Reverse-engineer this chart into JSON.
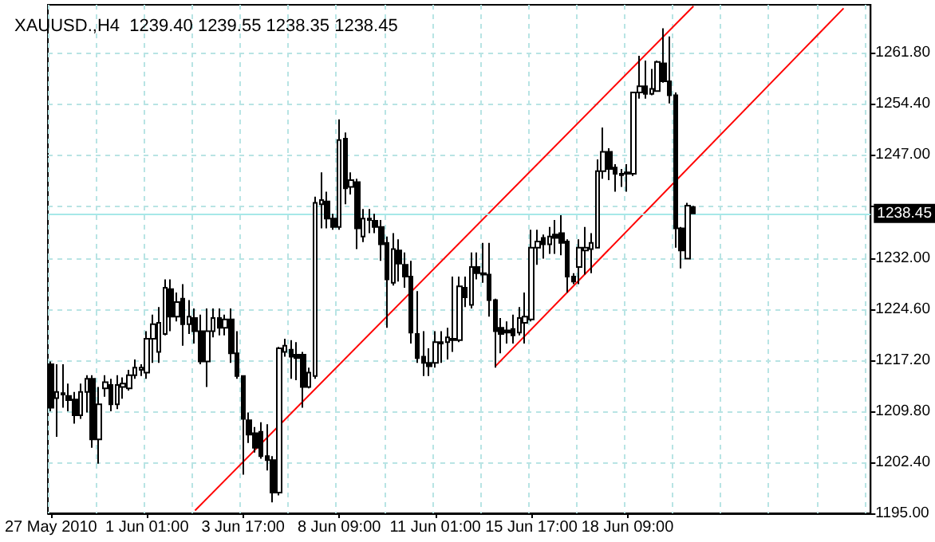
{
  "chart_data": {
    "type": "candlestick",
    "title": "XAUUSD.,H4  1239.40 1239.55 1238.35 1238.45",
    "categories": [
      "27 May 2010",
      null,
      null,
      null,
      null,
      null,
      null,
      null,
      null,
      null,
      null,
      null,
      null,
      null,
      null,
      null,
      "1 Jun 01:00",
      null,
      null,
      null,
      null,
      null,
      null,
      null,
      null,
      null,
      null,
      null,
      null,
      null,
      null,
      null,
      "3 Jun 17:00",
      null,
      null,
      null,
      null,
      null,
      null,
      null,
      null,
      null,
      null,
      null,
      null,
      null,
      null,
      null,
      "8 Jun 09:00",
      null,
      null,
      null,
      null,
      null,
      null,
      null,
      null,
      null,
      null,
      null,
      null,
      null,
      null,
      null,
      "11 Jun 01:00",
      null,
      null,
      null,
      null,
      null,
      null,
      null,
      null,
      null,
      null,
      null,
      null,
      null,
      null,
      null,
      "15 Jun 17:00",
      null,
      null,
      null,
      null,
      null,
      null,
      null,
      null,
      null,
      null,
      null,
      null,
      null,
      null,
      null,
      "18 Jun 09:00",
      null,
      null,
      null,
      null,
      null,
      null,
      null,
      null,
      null,
      null,
      null,
      null,
      null,
      null,
      null,
      null,
      null,
      null,
      null,
      null,
      null,
      null,
      null,
      null,
      null,
      null,
      null,
      null,
      null,
      null,
      null,
      null,
      null,
      null,
      null,
      null,
      null,
      null,
      null,
      null
    ],
    "ohlc": [
      [
        1216.6,
        1217.0,
        1209.8,
        1210.3
      ],
      [
        1211.7,
        1216.6,
        1206.1,
        1212.6
      ],
      [
        1212.2,
        1216.6,
        1210.3,
        1212.4
      ],
      [
        1212.0,
        1213.8,
        1209.8,
        1211.4
      ],
      [
        1211.5,
        1212.6,
        1208.0,
        1209.2
      ],
      [
        1209.2,
        1213.8,
        1208.7,
        1212.6
      ],
      [
        1212.6,
        1215.0,
        1209.6,
        1214.5
      ],
      [
        1214.5,
        1215.0,
        1204.5,
        1205.7
      ],
      [
        1205.7,
        1213.3,
        1202.2,
        1210.8
      ],
      [
        1213.1,
        1215.0,
        1211.9,
        1214.0
      ],
      [
        1213.6,
        1214.5,
        1209.8,
        1210.8
      ],
      [
        1210.8,
        1215.0,
        1210.1,
        1213.6
      ],
      [
        1213.3,
        1214.7,
        1211.6,
        1213.8
      ],
      [
        1213.1,
        1215.8,
        1212.8,
        1215.0
      ],
      [
        1215.0,
        1217.3,
        1214.5,
        1216.1
      ],
      [
        1215.8,
        1216.6,
        1214.9,
        1216.1
      ],
      [
        1215.4,
        1221.4,
        1214.5,
        1220.3
      ],
      [
        1220.3,
        1223.8,
        1216.8,
        1222.4
      ],
      [
        1218.4,
        1224.9,
        1216.8,
        1222.6
      ],
      [
        1221.0,
        1228.9,
        1220.8,
        1227.7
      ],
      [
        1227.5,
        1228.9,
        1221.4,
        1223.5
      ],
      [
        1223.5,
        1227.0,
        1222.8,
        1225.6
      ],
      [
        1226.1,
        1228.2,
        1219.3,
        1222.4
      ],
      [
        1222.4,
        1225.9,
        1221.0,
        1223.5
      ],
      [
        1223.3,
        1224.7,
        1219.6,
        1221.4
      ],
      [
        1221.4,
        1223.8,
        1216.6,
        1217.0
      ],
      [
        1217.0,
        1224.7,
        1213.3,
        1221.4
      ],
      [
        1221.4,
        1224.7,
        1220.5,
        1223.3
      ],
      [
        1223.3,
        1224.7,
        1220.8,
        1221.9
      ],
      [
        1221.9,
        1223.8,
        1220.8,
        1223.1
      ],
      [
        1223.1,
        1224.7,
        1216.8,
        1218.2
      ],
      [
        1218.2,
        1221.4,
        1214.5,
        1214.9
      ],
      [
        1214.9,
        1214.9,
        1200.6,
        1208.7
      ],
      [
        1208.5,
        1209.6,
        1205.2,
        1206.4
      ],
      [
        1206.6,
        1207.5,
        1203.8,
        1204.5
      ],
      [
        1206.8,
        1208.2,
        1202.9,
        1203.3
      ],
      [
        1203.3,
        1207.9,
        1201.2,
        1202.7
      ],
      [
        1202.7,
        1203.3,
        1196.6,
        1198.0
      ],
      [
        1198.0,
        1219.1,
        1197.6,
        1218.9
      ],
      [
        1218.4,
        1220.3,
        1217.7,
        1219.3
      ],
      [
        1218.7,
        1220.1,
        1214.5,
        1217.7
      ],
      [
        1218.0,
        1219.8,
        1214.3,
        1217.5
      ],
      [
        1218.0,
        1218.4,
        1210.3,
        1213.3
      ],
      [
        1213.3,
        1216.1,
        1213.1,
        1215.4
      ],
      [
        1214.9,
        1240.9,
        1214.5,
        1240.0
      ],
      [
        1239.8,
        1244.4,
        1236.3,
        1240.4
      ],
      [
        1240.2,
        1241.6,
        1236.3,
        1237.7
      ],
      [
        1237.7,
        1238.4,
        1236.1,
        1236.5
      ],
      [
        1236.5,
        1252.1,
        1236.1,
        1249.1
      ],
      [
        1249.3,
        1250.2,
        1239.8,
        1242.1
      ],
      [
        1242.3,
        1244.4,
        1241.2,
        1243.3
      ],
      [
        1243.0,
        1243.5,
        1233.3,
        1236.3
      ],
      [
        1235.1,
        1239.1,
        1234.3,
        1237.7
      ],
      [
        1237.5,
        1239.1,
        1235.6,
        1237.7
      ],
      [
        1237.4,
        1238.4,
        1235.6,
        1236.5
      ],
      [
        1236.5,
        1237.5,
        1231.6,
        1234.0
      ],
      [
        1234.2,
        1235.1,
        1221.9,
        1228.9
      ],
      [
        1228.4,
        1235.6,
        1228.0,
        1233.3
      ],
      [
        1233.1,
        1234.7,
        1228.6,
        1231.2
      ],
      [
        1231.0,
        1232.8,
        1227.7,
        1229.3
      ],
      [
        1229.3,
        1231.6,
        1219.6,
        1221.2
      ],
      [
        1221.0,
        1227.2,
        1216.8,
        1217.5
      ],
      [
        1217.7,
        1221.4,
        1214.9,
        1216.8
      ],
      [
        1216.8,
        1218.9,
        1214.9,
        1216.3
      ],
      [
        1216.8,
        1221.4,
        1216.1,
        1219.8
      ],
      [
        1219.6,
        1221.4,
        1216.8,
        1219.8
      ],
      [
        1219.8,
        1221.9,
        1217.3,
        1220.5
      ],
      [
        1220.3,
        1229.3,
        1218.4,
        1220.1
      ],
      [
        1220.1,
        1229.3,
        1219.8,
        1227.9
      ],
      [
        1227.7,
        1229.3,
        1224.9,
        1226.3
      ],
      [
        1225.2,
        1232.8,
        1224.7,
        1230.7
      ],
      [
        1230.7,
        1232.8,
        1228.9,
        1229.8
      ],
      [
        1229.8,
        1234.2,
        1228.4,
        1229.6
      ],
      [
        1229.6,
        1234.2,
        1223.5,
        1225.9
      ],
      [
        1225.9,
        1226.1,
        1216.1,
        1221.4
      ],
      [
        1221.9,
        1223.3,
        1218.2,
        1221.0
      ],
      [
        1221.5,
        1222.8,
        1219.6,
        1221.2
      ],
      [
        1221.7,
        1223.8,
        1219.6,
        1220.8
      ],
      [
        1221.2,
        1224.9,
        1220.8,
        1223.3
      ],
      [
        1222.6,
        1227.0,
        1219.6,
        1223.5
      ],
      [
        1223.1,
        1236.1,
        1222.8,
        1233.5
      ],
      [
        1233.5,
        1236.1,
        1231.0,
        1234.4
      ],
      [
        1234.9,
        1235.4,
        1231.9,
        1234.0
      ],
      [
        1234.0,
        1236.5,
        1232.6,
        1235.1
      ],
      [
        1235.4,
        1237.5,
        1232.6,
        1234.9
      ],
      [
        1235.6,
        1238.2,
        1232.4,
        1234.2
      ],
      [
        1234.4,
        1234.7,
        1227.0,
        1229.3
      ],
      [
        1229.3,
        1229.8,
        1228.2,
        1228.6
      ],
      [
        1230.7,
        1234.7,
        1228.2,
        1233.5
      ],
      [
        1233.1,
        1236.5,
        1229.6,
        1233.5
      ],
      [
        1233.3,
        1235.6,
        1229.8,
        1234.2
      ],
      [
        1233.5,
        1246.3,
        1233.5,
        1244.6
      ],
      [
        1244.6,
        1250.9,
        1243.5,
        1247.4
      ],
      [
        1247.4,
        1247.9,
        1243.3,
        1244.9
      ],
      [
        1245.1,
        1245.6,
        1241.6,
        1244.2
      ],
      [
        1244.2,
        1244.9,
        1242.3,
        1244.0
      ],
      [
        1244.2,
        1245.6,
        1241.6,
        1244.4
      ],
      [
        1244.2,
        1256.0,
        1243.9,
        1256.0
      ],
      [
        1256.0,
        1261.3,
        1255.1,
        1256.9
      ],
      [
        1256.9,
        1260.6,
        1255.1,
        1255.8
      ],
      [
        1255.8,
        1259.4,
        1255.6,
        1256.5
      ],
      [
        1256.2,
        1260.6,
        1256.2,
        1260.4
      ],
      [
        1260.2,
        1265.3,
        1257.4,
        1257.6
      ],
      [
        1257.6,
        1264.1,
        1254.4,
        1255.6
      ],
      [
        1255.6,
        1256.0,
        1233.5,
        1236.3
      ],
      [
        1236.3,
        1236.5,
        1230.5,
        1233.1
      ],
      [
        1231.9,
        1240.0,
        1231.9,
        1239.6
      ],
      [
        1239.4,
        1239.55,
        1238.35,
        1238.45
      ],
      null,
      null,
      null,
      null,
      null,
      null,
      null,
      null,
      null,
      null,
      null,
      null,
      null,
      null,
      null,
      null,
      null,
      null,
      null,
      null,
      null,
      null,
      null,
      null,
      null,
      null,
      null,
      null,
      null
    ],
    "series": [
      {
        "type": "line",
        "color": "#ff0000",
        "values": [
          null,
          null,
          null,
          null,
          null,
          null,
          null,
          null,
          null,
          null,
          null,
          null,
          null,
          null,
          null,
          null,
          null,
          null,
          null,
          null,
          null,
          null,
          null,
          null,
          1195.4,
          null,
          null,
          null,
          null,
          null,
          null,
          null,
          null,
          null,
          null,
          null,
          null,
          null,
          null,
          null,
          null,
          null,
          null,
          null,
          null,
          null,
          null,
          null,
          null,
          null,
          null,
          null,
          null,
          null,
          null,
          null,
          null,
          null,
          null,
          null,
          null,
          null,
          null,
          null,
          null,
          null,
          null,
          null,
          null,
          null,
          null,
          null,
          null,
          null,
          null,
          null,
          null,
          null,
          null,
          null,
          null,
          null,
          null,
          null,
          null,
          null,
          null,
          null,
          null,
          null,
          null,
          null,
          null,
          null,
          null,
          null,
          null,
          null,
          null,
          null,
          null,
          null,
          null,
          null,
          null,
          null,
          null,
          1268.5,
          null,
          null,
          null,
          null,
          null,
          null,
          null,
          null,
          null,
          null,
          null,
          null,
          null,
          null,
          null,
          null,
          null,
          null,
          null,
          null,
          null,
          null,
          null,
          null,
          null,
          null,
          null,
          null,
          null
        ]
      },
      {
        "type": "line",
        "color": "#ff0000",
        "values": [
          null,
          null,
          null,
          null,
          null,
          null,
          null,
          null,
          null,
          null,
          null,
          null,
          null,
          null,
          null,
          null,
          null,
          null,
          null,
          null,
          null,
          null,
          null,
          null,
          null,
          null,
          null,
          null,
          null,
          null,
          null,
          null,
          null,
          null,
          null,
          null,
          null,
          null,
          null,
          null,
          null,
          null,
          null,
          null,
          null,
          null,
          null,
          null,
          null,
          null,
          null,
          null,
          null,
          null,
          null,
          null,
          null,
          null,
          null,
          null,
          null,
          null,
          null,
          null,
          null,
          null,
          null,
          null,
          null,
          null,
          null,
          null,
          null,
          null,
          1216.3,
          null,
          null,
          null,
          null,
          null,
          null,
          null,
          null,
          null,
          null,
          null,
          null,
          null,
          null,
          null,
          null,
          null,
          null,
          null,
          null,
          null,
          null,
          null,
          null,
          null,
          null,
          null,
          null,
          null,
          null,
          null,
          null,
          null,
          null,
          null,
          null,
          null,
          null,
          null,
          null,
          null,
          null,
          null,
          null,
          null,
          null,
          null,
          null,
          null,
          null,
          null,
          null,
          null,
          null,
          null,
          null,
          null,
          1268.2,
          null,
          null,
          null,
          null
        ]
      }
    ],
    "ylim": [
      1195,
      1268.7
    ],
    "yticks": [
      {
        "value": 1195,
        "label": "1195.00"
      },
      {
        "value": 1202.4,
        "label": "1202.40"
      },
      {
        "value": 1209.8,
        "label": "1209.80"
      },
      {
        "value": 1217.2,
        "label": "1217.20"
      },
      {
        "value": 1224.6,
        "label": "1224.60"
      },
      {
        "value": 1232,
        "label": "1232.00"
      },
      {
        "value": 1239.6,
        "label": null
      },
      {
        "value": 1247,
        "label": "1247.00"
      },
      {
        "value": 1254.4,
        "label": "1254.40"
      },
      {
        "value": 1261.8,
        "label": "1261.80"
      }
    ],
    "ref_lines": [
      {
        "axis": "y",
        "value": 1238.45,
        "label": "1238.45",
        "color": "#a6e8e8"
      }
    ],
    "grid": true
  }
}
